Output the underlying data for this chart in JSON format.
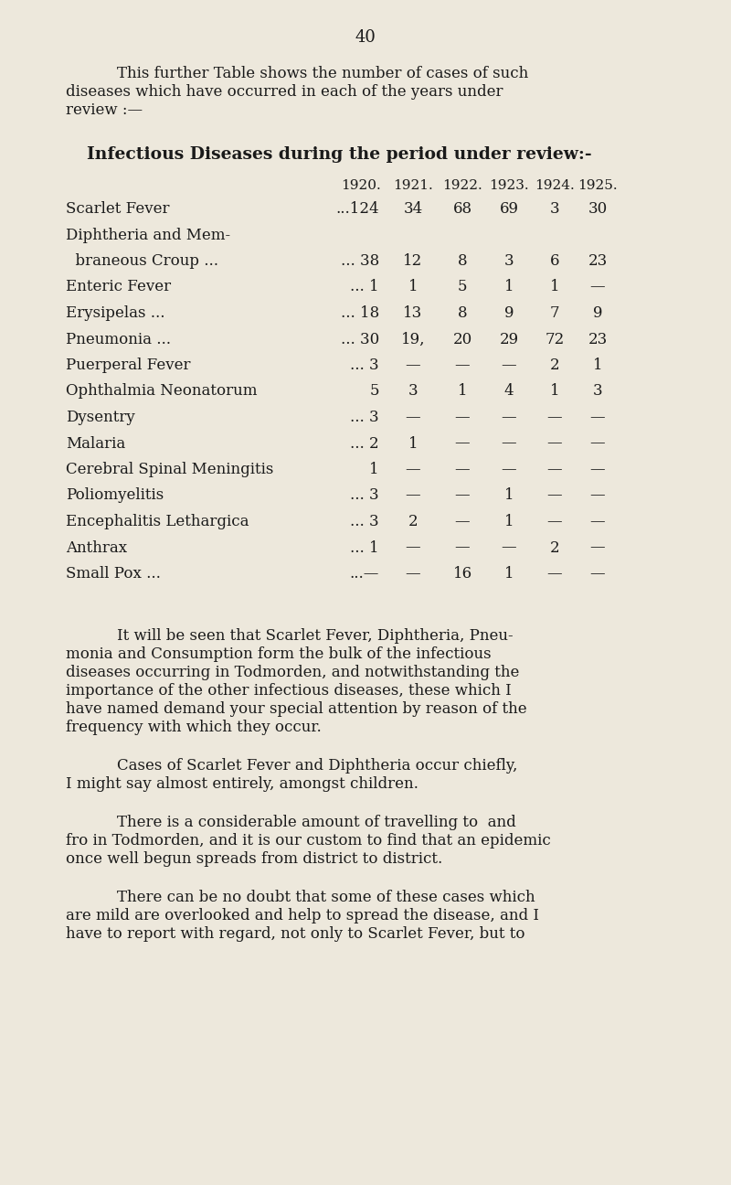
{
  "background_color": "#ede8dc",
  "page_number": "40",
  "years": [
    "1920.",
    "1921.",
    "1922.",
    "1923.",
    "1924.",
    "1925."
  ],
  "table_title": "Infectious Diseases during the period under review:-",
  "intro_line1": "This further Table shows the number of cases of such",
  "intro_line2": "diseases which have occurred in each of the years under",
  "intro_line3": "review :—",
  "rows": [
    {
      "label": "Scarlet Fever",
      "dots1": "...",
      "dots2": "...124",
      "v1921": "34",
      "v1922": "68",
      "v1923": "69",
      "v1924": "3",
      "v1925": "30"
    },
    {
      "label": "Diphtheria and Mem-",
      "dots1": "",
      "dots2": "",
      "v1921": "",
      "v1922": "",
      "v1923": "",
      "v1924": "",
      "v1925": ""
    },
    {
      "label": "  braneous Croup ...",
      "dots1": "",
      "dots2": "... 38",
      "v1921": "12",
      "v1922": "8",
      "v1923": "3",
      "v1924": "6",
      "v1925": "23"
    },
    {
      "label": "Enteric Fever",
      "dots1": "...",
      "dots2": "... 1",
      "v1921": "1",
      "v1922": "5",
      "v1923": "1",
      "v1924": "1",
      "v1925": "—"
    },
    {
      "label": "Erysipelas ...",
      "dots1": "...",
      "dots2": "... 18",
      "v1921": "13",
      "v1922": "8",
      "v1923": "9",
      "v1924": "7",
      "v1925": "9"
    },
    {
      "label": "Pneumonia ...",
      "dots1": "...",
      "dots2": "... 30",
      "v1921": "19,",
      "v1922": "20",
      "v1923": "29",
      "v1924": "72",
      "v1925": "23"
    },
    {
      "label": "Puerperal Fever",
      "dots1": "...",
      "dots2": "... 3",
      "v1921": "—",
      "v1922": "—",
      "v1923": "—",
      "v1924": "2",
      "v1925": "1"
    },
    {
      "label": "Ophthalmia Neonatorum",
      "dots1": "...",
      "dots2": "5",
      "v1921": "3",
      "v1922": "1",
      "v1923": "4",
      "v1924": "1",
      "v1925": "3"
    },
    {
      "label": "Dysentry",
      "dots1": "...",
      "dots2": "... 3",
      "v1921": "—",
      "v1922": "—",
      "v1923": "—",
      "v1924": "—",
      "v1925": "—"
    },
    {
      "label": "Malaria",
      "dots1": "...",
      "dots2": "... 2",
      "v1921": "1",
      "v1922": "—",
      "v1923": "—",
      "v1924": "—",
      "v1925": "—"
    },
    {
      "label": "Cerebral Spinal Meningitis",
      "dots1": "",
      "dots2": "1",
      "v1921": "—",
      "v1922": "—",
      "v1923": "—",
      "v1924": "—",
      "v1925": "—"
    },
    {
      "label": "Poliomyelitis",
      "dots1": "...",
      "dots2": "... 3",
      "v1921": "—",
      "v1922": "—",
      "v1923": "1",
      "v1924": "—",
      "v1925": "—"
    },
    {
      "label": "Encephalitis Lethargica",
      "dots1": "...",
      "dots2": "... 3",
      "v1921": "2",
      "v1922": "—",
      "v1923": "1",
      "v1924": "—",
      "v1925": "—"
    },
    {
      "label": "Anthrax",
      "dots1": "...",
      "dots2": "... 1",
      "v1921": "—",
      "v1922": "—",
      "v1923": "—",
      "v1924": "2",
      "v1925": "—"
    },
    {
      "label": "Small Pox ...",
      "dots1": "...",
      "dots2": "...—",
      "v1921": "—",
      "v1922": "16",
      "v1923": "1",
      "v1924": "—",
      "v1925": "—"
    }
  ],
  "para1_lines": [
    "It will be seen that Scarlet Fever, Diphtheria, Pneu-",
    "monia and Consumption form the bulk of the infectious",
    "diseases occurring in Todmorden, and notwithstanding the",
    "importance of the other infectious diseases, these which I",
    "have named demand your special attention by reason of the",
    "frequency with which they occur."
  ],
  "para2_lines": [
    "Cases of Scarlet Fever and Diphtheria occur chiefly,",
    "I might say almost entirely, amongst children."
  ],
  "para3_lines": [
    "There is a considerable amount of travelling to  and",
    "fro in Todmorden, and it is our custom to find that an epidemic",
    "once well begun spreads from district to district."
  ],
  "para4_lines": [
    "There can be no doubt that some of these cases which",
    "are mild are overlooked and help to spread the disease, and I",
    "have to report with regard, not only to Scarlet Fever, but to"
  ]
}
